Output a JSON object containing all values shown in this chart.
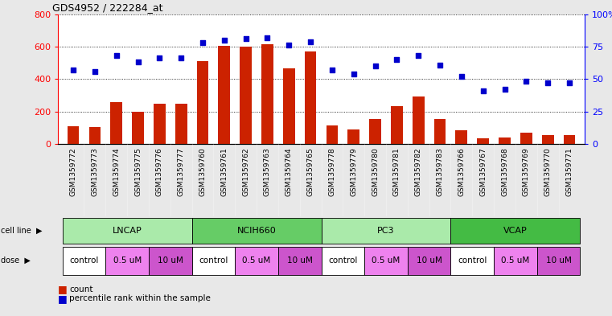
{
  "title": "GDS4952 / 222284_at",
  "samples": [
    "GSM1359772",
    "GSM1359773",
    "GSM1359774",
    "GSM1359775",
    "GSM1359776",
    "GSM1359777",
    "GSM1359760",
    "GSM1359761",
    "GSM1359762",
    "GSM1359763",
    "GSM1359764",
    "GSM1359765",
    "GSM1359778",
    "GSM1359779",
    "GSM1359780",
    "GSM1359781",
    "GSM1359782",
    "GSM1359783",
    "GSM1359766",
    "GSM1359767",
    "GSM1359768",
    "GSM1359769",
    "GSM1359770",
    "GSM1359771"
  ],
  "counts": [
    110,
    105,
    255,
    200,
    245,
    245,
    510,
    605,
    600,
    615,
    465,
    570,
    115,
    90,
    155,
    230,
    290,
    155,
    85,
    35,
    40,
    70,
    55,
    55
  ],
  "percentiles": [
    57,
    56,
    68,
    63,
    66,
    66,
    78,
    80,
    81,
    82,
    76,
    79,
    57,
    54,
    60,
    65,
    68,
    61,
    52,
    41,
    42,
    48,
    47,
    47
  ],
  "cell_lines": [
    {
      "name": "LNCAP",
      "start": 0,
      "end": 6,
      "color": "#aaeaaa"
    },
    {
      "name": "NCIH660",
      "start": 6,
      "end": 12,
      "color": "#66cc66"
    },
    {
      "name": "PC3",
      "start": 12,
      "end": 18,
      "color": "#aaeaaa"
    },
    {
      "name": "VCAP",
      "start": 18,
      "end": 24,
      "color": "#44bb44"
    }
  ],
  "doses": [
    {
      "name": "control",
      "start": 0,
      "end": 2,
      "color": "#ffffff"
    },
    {
      "name": "0.5 uM",
      "start": 2,
      "end": 4,
      "color": "#ee82ee"
    },
    {
      "name": "10 uM",
      "start": 4,
      "end": 6,
      "color": "#cc55cc"
    },
    {
      "name": "control",
      "start": 6,
      "end": 8,
      "color": "#ffffff"
    },
    {
      "name": "0.5 uM",
      "start": 8,
      "end": 10,
      "color": "#ee82ee"
    },
    {
      "name": "10 uM",
      "start": 10,
      "end": 12,
      "color": "#cc55cc"
    },
    {
      "name": "control",
      "start": 12,
      "end": 14,
      "color": "#ffffff"
    },
    {
      "name": "0.5 uM",
      "start": 14,
      "end": 16,
      "color": "#ee82ee"
    },
    {
      "name": "10 uM",
      "start": 16,
      "end": 18,
      "color": "#cc55cc"
    },
    {
      "name": "control",
      "start": 18,
      "end": 20,
      "color": "#ffffff"
    },
    {
      "name": "0.5 uM",
      "start": 20,
      "end": 22,
      "color": "#ee82ee"
    },
    {
      "name": "10 uM",
      "start": 22,
      "end": 24,
      "color": "#cc55cc"
    }
  ],
  "bar_color": "#cc2200",
  "dot_color": "#0000cc",
  "ylim_left": [
    0,
    800
  ],
  "ylim_right": [
    0,
    100
  ],
  "yticks_left": [
    0,
    200,
    400,
    600,
    800
  ],
  "yticks_right": [
    0,
    25,
    50,
    75,
    100
  ],
  "bg_color": "#e8e8e8",
  "plot_bg": "#ffffff",
  "label_bg": "#cccccc"
}
